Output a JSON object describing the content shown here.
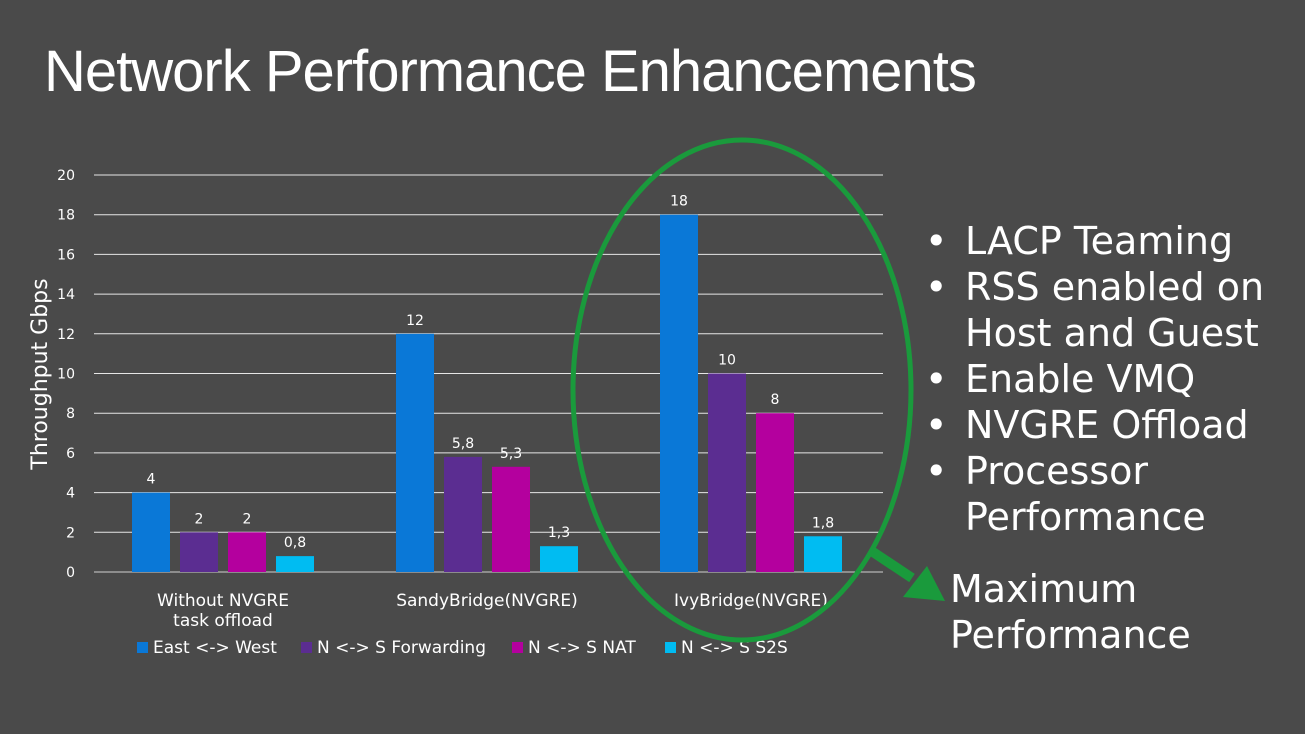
{
  "slide": {
    "title": "Network Performance Enhancements"
  },
  "bullets": [
    "LACP Teaming",
    "RSS enabled on",
    "Host and Guest",
    "Enable VMQ",
    "NVGRE Offload",
    "Processor",
    "Performance"
  ],
  "bullet_marks": [
    true,
    true,
    false,
    true,
    true,
    true,
    false
  ],
  "callout": {
    "lines": [
      "Maximum",
      "Performance"
    ],
    "arrow_color": "#1a9a3c",
    "ellipse_color": "#1a9a3c"
  },
  "chart_data": {
    "type": "bar",
    "categories": [
      "Without NVGRE\ntask offload",
      "SandyBridge(NVGRE)",
      "IvyBridge(NVGRE)"
    ],
    "series": [
      {
        "name": "East <-> West",
        "color": "#0a78d7",
        "values": [
          4,
          12,
          18
        ],
        "labels": [
          "4",
          "12",
          "18"
        ]
      },
      {
        "name": "N <-> S Forwarding",
        "color": "#5b2d91",
        "values": [
          2,
          5.8,
          10
        ],
        "labels": [
          "2",
          "5,8",
          "10"
        ]
      },
      {
        "name": "N <-> S NAT",
        "color": "#b4009e",
        "values": [
          2,
          5.3,
          8
        ],
        "labels": [
          "2",
          "5,3",
          "8"
        ]
      },
      {
        "name": "N <-> S S2S",
        "color": "#00bcf2",
        "values": [
          0.8,
          1.3,
          1.8
        ],
        "labels": [
          "0,8",
          "1,3",
          "1,8"
        ]
      }
    ],
    "ylabel": "Throughput Gbps",
    "xlabel": "",
    "ylim": [
      0,
      20
    ],
    "yticks": [
      0,
      2,
      4,
      6,
      8,
      10,
      12,
      14,
      16,
      18,
      20
    ],
    "grid": true,
    "legend": "bottom",
    "highlight_category": "IvyBridge(NVGRE)"
  }
}
